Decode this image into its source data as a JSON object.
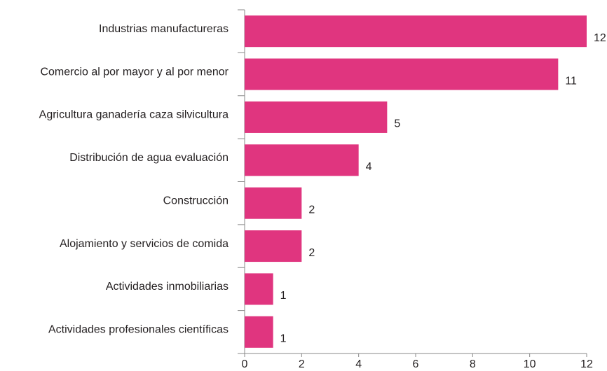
{
  "chart_data": {
    "type": "bar",
    "orientation": "horizontal",
    "categories": [
      "Industrias manufactureras",
      "Comercio al por mayor y al por menor",
      "Agricultura ganadería caza silvicultura",
      "Distribución de agua evaluación",
      "Construcción",
      "Alojamiento y servicios de comida",
      "Actividades inmobiliarias",
      "Actividades profesionales científicas"
    ],
    "values": [
      12,
      11,
      5,
      4,
      2,
      2,
      1,
      1
    ],
    "color": "#e0357f",
    "xlim": [
      0,
      12
    ],
    "xticks": [
      0,
      2,
      4,
      6,
      8,
      10,
      12
    ]
  }
}
